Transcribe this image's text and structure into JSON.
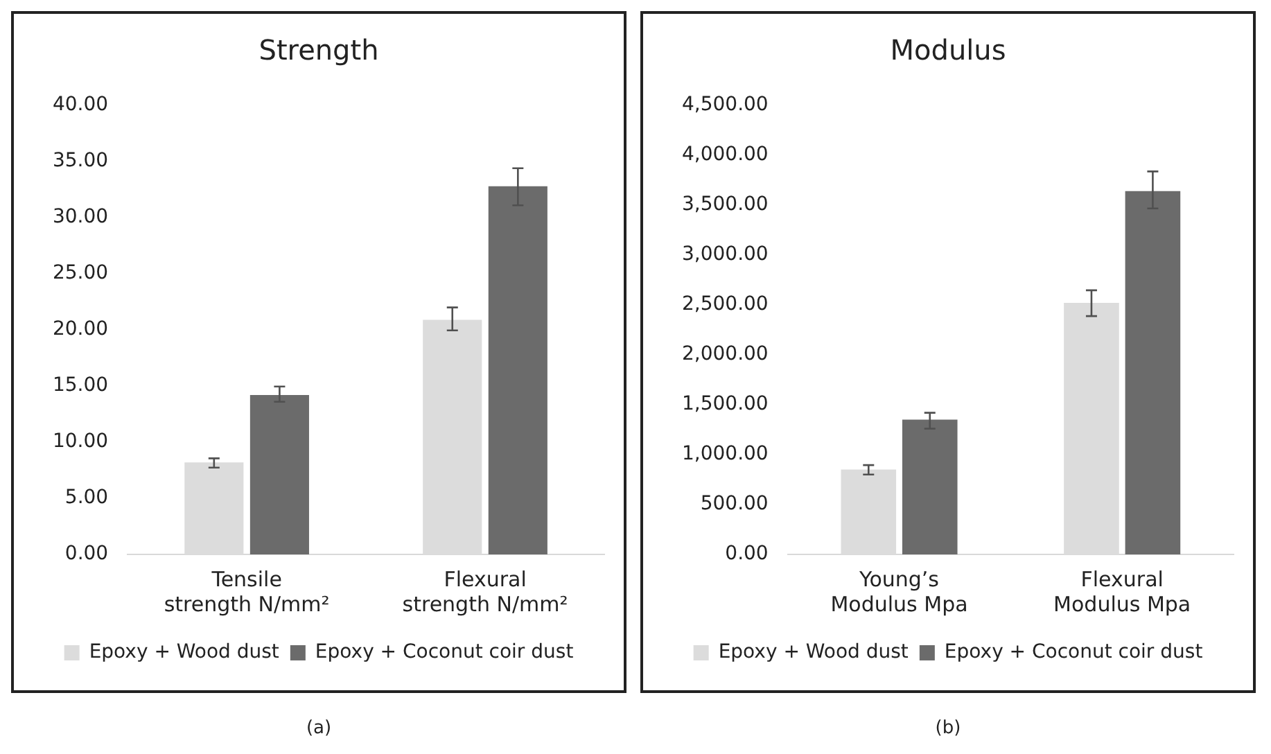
{
  "chart_data": [
    {
      "type": "bar",
      "title": "Strength",
      "categories": [
        "Tensile strength N/mm²",
        "Flexural strength N/mm²"
      ],
      "series": [
        {
          "name": "Epoxy + Wood dust",
          "color": "#dcdcdc",
          "values": [
            8.2,
            20.9
          ],
          "errors": [
            [
              7.73,
              8.56
            ],
            [
              19.95,
              22.0
            ]
          ]
        },
        {
          "name": "Epoxy + Coconut coir dust",
          "color": "#6b6b6b",
          "values": [
            14.2,
            32.8
          ],
          "errors": [
            [
              13.6,
              14.95
            ],
            [
              31.1,
              34.4
            ]
          ]
        }
      ],
      "ylim": [
        0,
        40
      ],
      "yticks": [
        {
          "value": 0,
          "label": "0.00"
        },
        {
          "value": 5,
          "label": "5.00"
        },
        {
          "value": 10,
          "label": "10.00"
        },
        {
          "value": 15,
          "label": "15.00"
        },
        {
          "value": 20,
          "label": "20.00"
        },
        {
          "value": 25,
          "label": "25.00"
        },
        {
          "value": 30,
          "label": "30.00"
        },
        {
          "value": 35,
          "label": "35.00"
        },
        {
          "value": 40,
          "label": "40.00"
        }
      ],
      "grid": false,
      "legend": "bottom",
      "annotations": [
        "(a)"
      ]
    },
    {
      "type": "bar",
      "title": "Modulus",
      "categories": [
        "Young’s Modulus Mpa",
        "Flexural Modulus Mpa"
      ],
      "series": [
        {
          "name": "Epoxy + Wood dust",
          "color": "#dcdcdc",
          "values": [
            850,
            2520
          ],
          "errors": [
            [
              800,
              895
            ],
            [
              2388,
              2647
            ]
          ]
        },
        {
          "name": "Epoxy + Coconut coir dust",
          "color": "#6b6b6b",
          "values": [
            1350,
            3640
          ],
          "errors": [
            [
              1260,
              1419
            ],
            [
              3467,
              3838
            ]
          ]
        }
      ],
      "ylim": [
        0,
        4500
      ],
      "yticks": [
        {
          "value": 0,
          "label": "0.00"
        },
        {
          "value": 500,
          "label": "500.00"
        },
        {
          "value": 1000,
          "label": "1,000.00"
        },
        {
          "value": 1500,
          "label": "1,500.00"
        },
        {
          "value": 2000,
          "label": "2,000.00"
        },
        {
          "value": 2500,
          "label": "2,500.00"
        },
        {
          "value": 3000,
          "label": "3,000.00"
        },
        {
          "value": 3500,
          "label": "3,500.00"
        },
        {
          "value": 4000,
          "label": "4,000.00"
        },
        {
          "value": 4500,
          "label": "4,500.00"
        }
      ],
      "grid": false,
      "legend": "bottom",
      "annotations": [
        "(b)"
      ]
    }
  ]
}
